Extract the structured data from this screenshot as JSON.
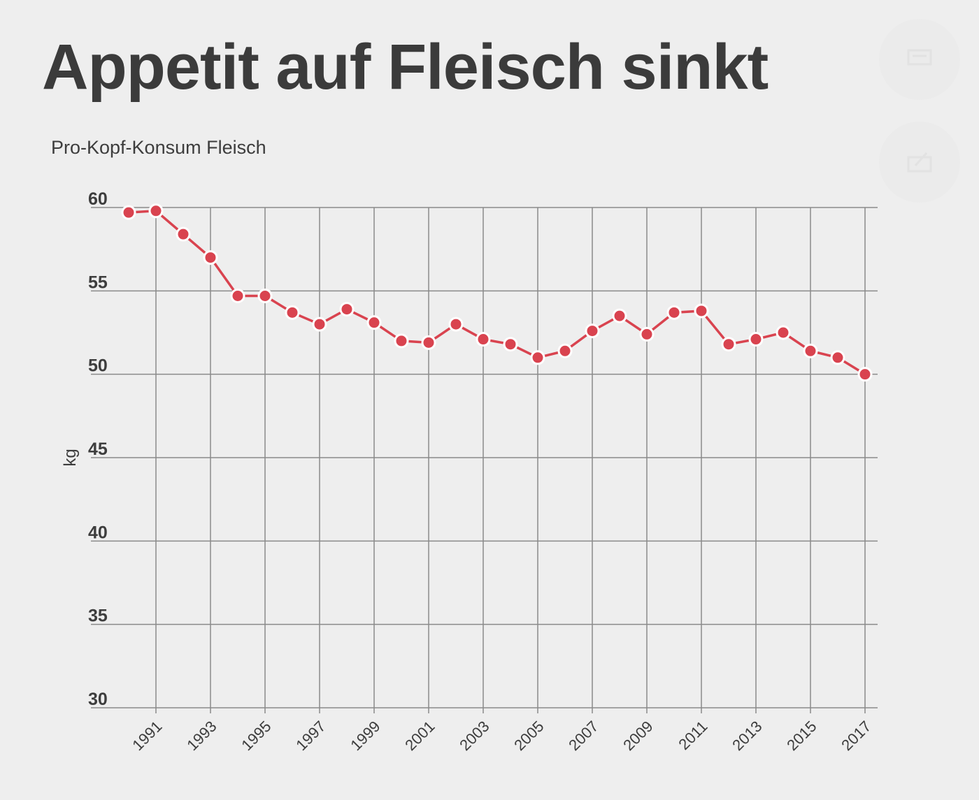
{
  "title": "Appetit auf Fleisch sinkt",
  "subtitle": "Pro-Kopf-Konsum Fleisch",
  "actions": [
    {
      "icon": "comment-icon"
    },
    {
      "icon": "share-icon"
    }
  ],
  "chart_data": {
    "type": "line",
    "ylabel": "kg",
    "xlabel": "",
    "ylim": [
      30,
      60
    ],
    "yticks": [
      60,
      55,
      50,
      45,
      40,
      35,
      30
    ],
    "xticks": [
      1991,
      1993,
      1995,
      1997,
      1999,
      2001,
      2003,
      2005,
      2007,
      2009,
      2011,
      2013,
      2015,
      2017
    ],
    "grid": true,
    "color": "#d9434f",
    "x": [
      1990,
      1991,
      1992,
      1993,
      1994,
      1995,
      1996,
      1997,
      1998,
      1999,
      2000,
      2001,
      2002,
      2003,
      2004,
      2005,
      2006,
      2007,
      2008,
      2009,
      2010,
      2011,
      2012,
      2013,
      2014,
      2015,
      2016,
      2017
    ],
    "y": [
      59.7,
      59.8,
      58.4,
      57.0,
      54.7,
      54.7,
      53.7,
      53.0,
      53.9,
      53.1,
      52.0,
      51.9,
      53.0,
      52.1,
      51.8,
      51.0,
      51.4,
      52.6,
      53.5,
      52.4,
      53.7,
      53.8,
      51.8,
      52.1,
      52.5,
      51.4,
      51.0,
      50.0
    ]
  }
}
